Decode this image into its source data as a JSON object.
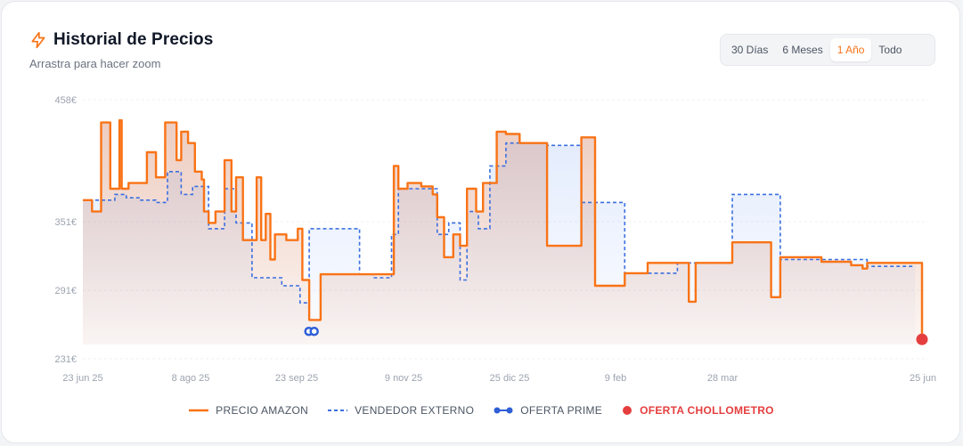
{
  "header": {
    "title": "Historial de Precios",
    "subtitle": "Arrastra para hacer zoom"
  },
  "ranges": [
    {
      "label": "30 Días",
      "active": false
    },
    {
      "label": "6 Meses",
      "active": false
    },
    {
      "label": "1 Año",
      "active": true
    },
    {
      "label": "Todo",
      "active": false
    }
  ],
  "legend": {
    "amazon": "PRECIO AMAZON",
    "external": "VENDEDOR EXTERNO",
    "prime": "OFERTA PRIME",
    "chollometro": "OFERTA CHOLLOMETRO"
  },
  "colors": {
    "amazon": "#f97316",
    "external": "#3b6fe0",
    "prime": "#2f5fd7",
    "chollometro": "#e53e3e",
    "accent": "#f97316"
  },
  "chart_data": {
    "type": "line",
    "x_axis": "date",
    "y_ticks": [
      {
        "value": 458,
        "label": "458€"
      },
      {
        "value": 351,
        "label": "351€"
      },
      {
        "value": 291,
        "label": "291€"
      },
      {
        "value": 231,
        "label": "231€"
      }
    ],
    "x_ticks": [
      "23 jun 25",
      "8 ago 25",
      "23 sep 25",
      "9 nov 25",
      "25 dic 25",
      "9 feb",
      "28 mar",
      "25 jun"
    ],
    "ylim": [
      231,
      458
    ],
    "series": [
      {
        "name": "PRECIO AMAZON",
        "style": "solid-step",
        "points": [
          [
            "2025-06-23",
            370
          ],
          [
            "2025-06-27",
            360
          ],
          [
            "2025-07-01",
            438
          ],
          [
            "2025-07-05",
            380
          ],
          [
            "2025-07-09",
            440
          ],
          [
            "2025-07-10",
            380
          ],
          [
            "2025-07-13",
            385
          ],
          [
            "2025-07-19",
            385
          ],
          [
            "2025-07-21",
            412
          ],
          [
            "2025-07-25",
            390
          ],
          [
            "2025-07-29",
            438
          ],
          [
            "2025-08-03",
            405
          ],
          [
            "2025-08-05",
            430
          ],
          [
            "2025-08-08",
            420
          ],
          [
            "2025-08-11",
            395
          ],
          [
            "2025-08-14",
            388
          ],
          [
            "2025-08-15",
            360
          ],
          [
            "2025-08-17",
            350
          ],
          [
            "2025-08-20",
            360
          ],
          [
            "2025-08-24",
            405
          ],
          [
            "2025-08-27",
            360
          ],
          [
            "2025-08-29",
            390
          ],
          [
            "2025-09-01",
            335
          ],
          [
            "2025-09-07",
            390
          ],
          [
            "2025-09-09",
            335
          ],
          [
            "2025-09-11",
            358
          ],
          [
            "2025-09-13",
            318
          ],
          [
            "2025-09-15",
            340
          ],
          [
            "2025-09-20",
            335
          ],
          [
            "2025-09-25",
            345
          ],
          [
            "2025-09-27",
            300
          ],
          [
            "2025-09-29",
            300
          ],
          [
            "2025-09-30",
            265
          ],
          [
            "2025-10-05",
            305
          ],
          [
            "2025-10-20",
            305
          ],
          [
            "2025-10-30",
            305
          ],
          [
            "2025-11-06",
            400
          ],
          [
            "2025-11-08",
            380
          ],
          [
            "2025-11-12",
            385
          ],
          [
            "2025-11-18",
            382
          ],
          [
            "2025-11-23",
            375
          ],
          [
            "2025-11-25",
            355
          ],
          [
            "2025-11-28",
            320
          ],
          [
            "2025-12-02",
            340
          ],
          [
            "2025-12-05",
            330
          ],
          [
            "2025-12-08",
            380
          ],
          [
            "2025-12-12",
            360
          ],
          [
            "2025-12-15",
            385
          ],
          [
            "2025-12-21",
            430
          ],
          [
            "2025-12-25",
            428
          ],
          [
            "2025-12-31",
            420
          ],
          [
            "2026-01-12",
            330
          ],
          [
            "2026-01-22",
            330
          ],
          [
            "2026-01-27",
            425
          ],
          [
            "2026-02-02",
            295
          ],
          [
            "2026-02-10",
            295
          ],
          [
            "2026-02-15",
            306
          ],
          [
            "2026-02-25",
            315
          ],
          [
            "2026-03-12",
            315
          ],
          [
            "2026-03-15",
            281
          ],
          [
            "2026-03-18",
            315
          ],
          [
            "2026-03-29",
            315
          ],
          [
            "2026-04-03",
            333
          ],
          [
            "2026-04-15",
            333
          ],
          [
            "2026-04-20",
            285
          ],
          [
            "2026-04-24",
            320
          ],
          [
            "2026-05-12",
            316
          ],
          [
            "2026-05-25",
            313
          ],
          [
            "2026-05-30",
            310
          ],
          [
            "2026-06-01",
            315
          ],
          [
            "2026-06-22",
            315
          ],
          [
            "2026-06-25",
            248
          ]
        ]
      },
      {
        "name": "VENDEDOR EXTERNO",
        "style": "dashed-step",
        "points": [
          [
            "2025-06-23",
            370
          ],
          [
            "2025-07-07",
            375
          ],
          [
            "2025-07-12",
            372
          ],
          [
            "2025-07-18",
            370
          ],
          [
            "2025-07-25",
            368
          ],
          [
            "2025-07-30",
            395
          ],
          [
            "2025-08-05",
            375
          ],
          [
            "2025-08-10",
            382
          ],
          [
            "2025-08-17",
            345
          ],
          [
            "2025-08-24",
            380
          ],
          [
            "2025-08-29",
            350
          ],
          [
            "2025-09-05",
            302
          ],
          [
            "2025-09-12",
            302
          ],
          [
            "2025-09-18",
            295
          ],
          [
            "2025-09-26",
            280
          ],
          [
            "2025-09-30",
            345
          ],
          [
            "2025-10-22",
            305
          ],
          [
            "2025-10-28",
            302
          ],
          [
            "2025-11-05",
            340
          ],
          [
            "2025-11-08",
            380
          ],
          [
            "2025-11-22",
            380
          ],
          [
            "2025-11-25",
            340
          ],
          [
            "2025-11-30",
            350
          ],
          [
            "2025-12-05",
            300
          ],
          [
            "2025-12-08",
            360
          ],
          [
            "2025-12-13",
            345
          ],
          [
            "2025-12-18",
            400
          ],
          [
            "2025-12-25",
            420
          ],
          [
            "2026-01-12",
            418
          ],
          [
            "2026-01-22",
            418
          ],
          [
            "2026-01-27",
            368
          ],
          [
            "2026-02-10",
            368
          ],
          [
            "2026-02-15",
            306
          ],
          [
            "2026-03-10",
            315
          ],
          [
            "2026-03-18",
            315
          ],
          [
            "2026-03-29",
            315
          ],
          [
            "2026-04-03",
            375
          ],
          [
            "2026-04-22",
            375
          ],
          [
            "2026-04-24",
            318
          ],
          [
            "2026-05-28",
            318
          ],
          [
            "2026-06-01",
            312
          ],
          [
            "2026-06-22",
            312
          ]
        ]
      }
    ],
    "markers": [
      {
        "series": "OFERTA PRIME",
        "date": "2025-10-01",
        "value": 255
      },
      {
        "series": "OFERTA CHOLLOMETRO",
        "date": "2026-06-25",
        "value": 248
      }
    ]
  }
}
